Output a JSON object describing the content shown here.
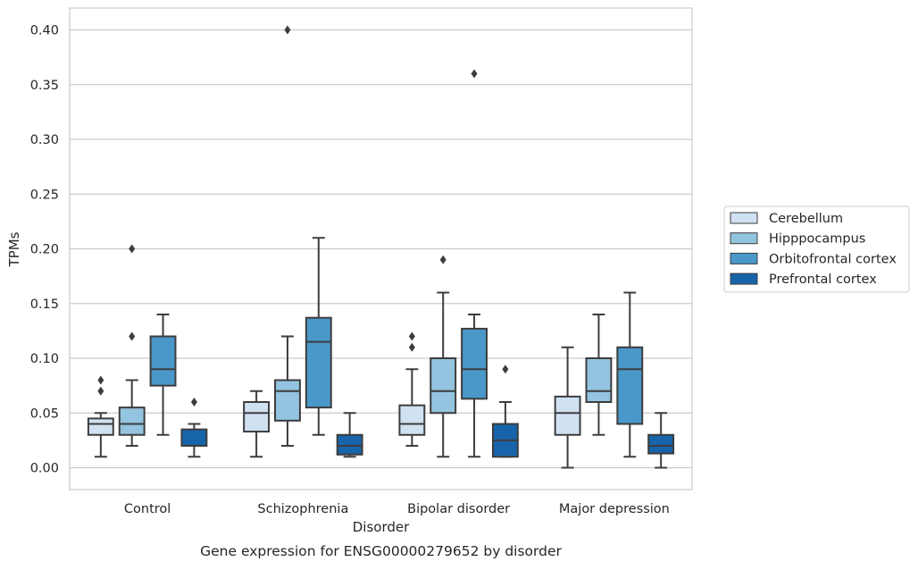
{
  "chart_data": {
    "type": "box",
    "title": "",
    "caption": "Gene expression for ENSG00000279652 by disorder",
    "xlabel": "Disorder",
    "ylabel": "TPMs",
    "ylim": [
      -0.02,
      0.42
    ],
    "yticks": [
      0.0,
      0.05,
      0.1,
      0.15,
      0.2,
      0.25,
      0.3,
      0.35,
      0.4
    ],
    "ytick_labels": [
      "0.00",
      "0.05",
      "0.10",
      "0.15",
      "0.20",
      "0.25",
      "0.30",
      "0.35",
      "0.40"
    ],
    "grid": "horizontal",
    "legend_position": "right",
    "categories": [
      "Control",
      "Schizophrenia",
      "Bipolar disorder",
      "Major depression"
    ],
    "series": [
      {
        "name": "Cerebellum",
        "color": "#d0e1f2",
        "boxes": [
          {
            "whislo": 0.01,
            "q1": 0.03,
            "med": 0.04,
            "q3": 0.045,
            "whishi": 0.05,
            "fliers": [
              0.07,
              0.08
            ]
          },
          {
            "whislo": 0.01,
            "q1": 0.033,
            "med": 0.05,
            "q3": 0.06,
            "whishi": 0.07,
            "fliers": []
          },
          {
            "whislo": 0.02,
            "q1": 0.03,
            "med": 0.04,
            "q3": 0.057,
            "whishi": 0.09,
            "fliers": [
              0.11,
              0.12
            ]
          },
          {
            "whislo": 0.0,
            "q1": 0.03,
            "med": 0.05,
            "q3": 0.065,
            "whishi": 0.11,
            "fliers": []
          }
        ]
      },
      {
        "name": "Hipppocampus",
        "color": "#94c4df",
        "boxes": [
          {
            "whislo": 0.02,
            "q1": 0.03,
            "med": 0.04,
            "q3": 0.055,
            "whishi": 0.08,
            "fliers": [
              0.12,
              0.2
            ]
          },
          {
            "whislo": 0.02,
            "q1": 0.043,
            "med": 0.07,
            "q3": 0.08,
            "whishi": 0.12,
            "fliers": [
              0.4
            ]
          },
          {
            "whislo": 0.01,
            "q1": 0.05,
            "med": 0.07,
            "q3": 0.1,
            "whishi": 0.16,
            "fliers": [
              0.19
            ]
          },
          {
            "whislo": 0.03,
            "q1": 0.06,
            "med": 0.07,
            "q3": 0.1,
            "whishi": 0.14,
            "fliers": []
          }
        ]
      },
      {
        "name": "Orbitofrontal cortex",
        "color": "#4a98c9",
        "boxes": [
          {
            "whislo": 0.03,
            "q1": 0.075,
            "med": 0.09,
            "q3": 0.12,
            "whishi": 0.14,
            "fliers": []
          },
          {
            "whislo": 0.03,
            "q1": 0.055,
            "med": 0.115,
            "q3": 0.137,
            "whishi": 0.21,
            "fliers": []
          },
          {
            "whislo": 0.01,
            "q1": 0.063,
            "med": 0.09,
            "q3": 0.127,
            "whishi": 0.14,
            "fliers": [
              0.36
            ]
          },
          {
            "whislo": 0.01,
            "q1": 0.04,
            "med": 0.09,
            "q3": 0.11,
            "whishi": 0.16,
            "fliers": []
          }
        ]
      },
      {
        "name": "Prefrontal cortex",
        "color": "#1764ab",
        "boxes": [
          {
            "whislo": 0.01,
            "q1": 0.02,
            "med": 0.02,
            "q3": 0.035,
            "whishi": 0.04,
            "fliers": [
              0.06
            ]
          },
          {
            "whislo": 0.01,
            "q1": 0.012,
            "med": 0.02,
            "q3": 0.03,
            "whishi": 0.05,
            "fliers": []
          },
          {
            "whislo": 0.01,
            "q1": 0.01,
            "med": 0.025,
            "q3": 0.04,
            "whishi": 0.06,
            "fliers": [
              0.09
            ]
          },
          {
            "whislo": 0.0,
            "q1": 0.013,
            "med": 0.02,
            "q3": 0.03,
            "whishi": 0.05,
            "fliers": []
          }
        ]
      }
    ]
  }
}
